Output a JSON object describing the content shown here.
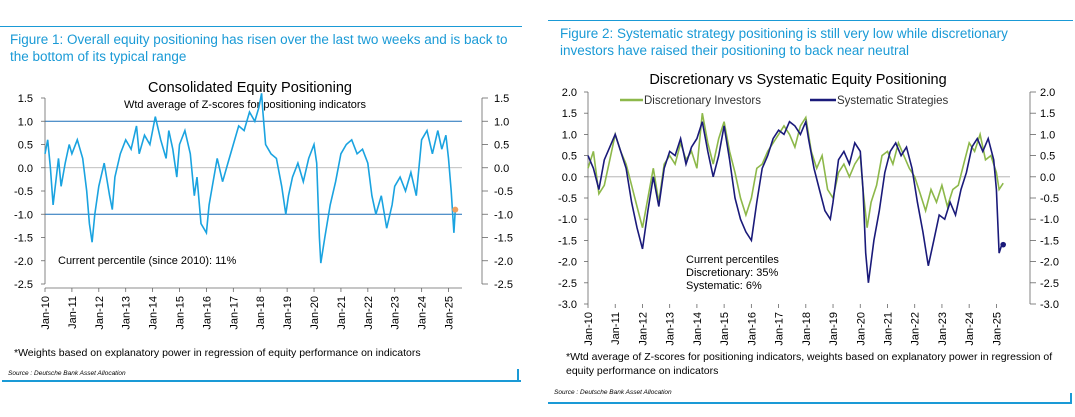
{
  "figure1": {
    "caption": "Figure 1: Overall equity positioning has risen over the last two weeks and is back to the bottom of its typical range",
    "footnote": "*Weights based on explanatory power in regression of equity performance on indicators",
    "source": "Source : Deutsche Bank Asset Allocation"
  },
  "figure2": {
    "caption": "Figure 2: Systematic strategy positioning is still very low while discretionary investors have raised their positioning to back near neutral",
    "footnote": "*Wtd average of Z-scores for positioning indicators, weights based on explanatory power in regression of equity performance on indicators",
    "source": "Source : Deutsche Bank Asset Allocation"
  },
  "chart_data": [
    {
      "type": "line",
      "title": "Consolidated Equity Positioning",
      "subtitle": "Wtd average of Z-scores for positioning indicators",
      "annotation": "Current percentile (since 2010): 11%",
      "ylim": [
        -2.5,
        1.5
      ],
      "yticks": [
        "1.5",
        "1.0",
        "0.5",
        "0.0",
        "-0.5",
        "-1.0",
        "-1.5",
        "-2.0",
        "-2.5"
      ],
      "ytick_values": [
        1.5,
        1.0,
        0.5,
        0.0,
        -0.5,
        -1.0,
        -1.5,
        -2.0,
        -2.5
      ],
      "reference_lines": [
        1.0,
        -1.0
      ],
      "xticks": [
        "Jan-10",
        "Jan-11",
        "Jan-12",
        "Jan-13",
        "Jan-14",
        "Jan-15",
        "Jan-16",
        "Jan-17",
        "Jan-18",
        "Jan-19",
        "Jan-20",
        "Jan-21",
        "Jan-22",
        "Jan-23",
        "Jan-24",
        "Jan-25"
      ],
      "x_start": 2010.0,
      "x_end": 2025.5,
      "line_color": "#1aa3e0",
      "marker_color": "#f0a060",
      "series": [
        {
          "x": [
            2010.0,
            2010.1,
            2010.2,
            2010.3,
            2010.4,
            2010.5,
            2010.6,
            2010.75,
            2010.9,
            2011.0,
            2011.2,
            2011.4,
            2011.55,
            2011.65,
            2011.75,
            2011.85,
            2012.0,
            2012.2,
            2012.4,
            2012.5,
            2012.6,
            2012.8,
            2013.0,
            2013.2,
            2013.4,
            2013.5,
            2013.7,
            2013.9,
            2014.0,
            2014.1,
            2014.3,
            2014.5,
            2014.6,
            2014.75,
            2014.9,
            2015.0,
            2015.2,
            2015.4,
            2015.55,
            2015.65,
            2015.8,
            2016.0,
            2016.1,
            2016.25,
            2016.4,
            2016.6,
            2016.8,
            2017.0,
            2017.2,
            2017.4,
            2017.6,
            2017.8,
            2017.95,
            2018.05,
            2018.1,
            2018.2,
            2018.4,
            2018.6,
            2018.8,
            2018.95,
            2019.05,
            2019.2,
            2019.4,
            2019.6,
            2019.8,
            2020.0,
            2020.1,
            2020.2,
            2020.25,
            2020.4,
            2020.6,
            2020.8,
            2021.0,
            2021.2,
            2021.4,
            2021.6,
            2021.8,
            2022.0,
            2022.15,
            2022.3,
            2022.5,
            2022.7,
            2022.9,
            2023.0,
            2023.2,
            2023.4,
            2023.6,
            2023.8,
            2024.0,
            2024.2,
            2024.4,
            2024.6,
            2024.75,
            2024.9,
            2025.0,
            2025.1,
            2025.2,
            2025.25
          ],
          "y": [
            0.3,
            0.6,
            0.0,
            -0.8,
            -0.3,
            0.2,
            -0.4,
            0.1,
            0.5,
            0.3,
            0.6,
            0.2,
            -0.5,
            -1.2,
            -1.6,
            -1.0,
            -0.4,
            0.1,
            -0.6,
            -0.9,
            -0.2,
            0.3,
            0.6,
            0.4,
            0.9,
            0.3,
            0.7,
            0.5,
            0.8,
            1.1,
            0.6,
            0.2,
            0.8,
            0.4,
            -0.2,
            0.5,
            0.8,
            0.3,
            -0.6,
            -0.2,
            -1.2,
            -1.4,
            -0.8,
            -0.3,
            0.2,
            -0.3,
            0.1,
            0.5,
            0.9,
            0.8,
            1.2,
            1.0,
            1.3,
            1.6,
            1.2,
            0.5,
            0.3,
            0.2,
            -0.4,
            -1.0,
            -0.6,
            -0.2,
            0.1,
            -0.3,
            0.2,
            0.5,
            0.1,
            -1.5,
            -2.05,
            -1.5,
            -0.8,
            -0.3,
            0.3,
            0.5,
            0.6,
            0.3,
            0.4,
            0.1,
            -0.6,
            -1.0,
            -0.6,
            -1.3,
            -0.8,
            -0.4,
            -0.2,
            -0.5,
            -0.1,
            -0.6,
            0.6,
            0.8,
            0.3,
            0.8,
            0.4,
            0.7,
            0.2,
            -0.5,
            -1.4,
            -0.9
          ]
        }
      ],
      "last_point": {
        "x": 2025.25,
        "y": -0.9
      }
    },
    {
      "type": "line",
      "title": "Discretionary  vs Systematic Equity Positioning",
      "annotation": [
        "Current percentiles",
        "Discretionary: 35%",
        "Systematic: 6%"
      ],
      "ylim": [
        -3.0,
        2.0
      ],
      "yticks_left": [
        "2.0",
        "1.5",
        "1.0",
        "0.5",
        "0.0",
        "-0.5",
        "-1.0",
        "-1.5",
        "-2.0",
        "-2.5",
        "-3.0"
      ],
      "yticks_right": [
        "2.0",
        "1.5",
        "1.0",
        "0.5",
        "0.0",
        "-0.5",
        "-1.0",
        "-1.5",
        "-2.0",
        "-2.5",
        "-3.0"
      ],
      "ytick_values": [
        2.0,
        1.5,
        1.0,
        0.5,
        0.0,
        -0.5,
        -1.0,
        -1.5,
        -2.0,
        -2.5,
        -3.0
      ],
      "xticks": [
        "Jan-10",
        "Jan-11",
        "Jan-12",
        "Jan-13",
        "Jan-14",
        "Jan-15",
        "Jan-16",
        "Jan-17",
        "Jan-18",
        "Jan-19",
        "Jan-20",
        "Jan-21",
        "Jan-22",
        "Jan-23",
        "Jan-24",
        "Jan-25"
      ],
      "x_start": 2010.0,
      "x_end": 2025.5,
      "series": [
        {
          "name": "Discretionary Investors",
          "color": "#8db84a",
          "x": [
            2010.0,
            2010.2,
            2010.4,
            2010.6,
            2010.8,
            2011.0,
            2011.2,
            2011.4,
            2011.6,
            2011.8,
            2012.0,
            2012.2,
            2012.4,
            2012.6,
            2012.8,
            2013.0,
            2013.2,
            2013.4,
            2013.6,
            2013.8,
            2014.0,
            2014.2,
            2014.4,
            2014.6,
            2014.8,
            2015.0,
            2015.2,
            2015.4,
            2015.6,
            2015.8,
            2016.0,
            2016.2,
            2016.4,
            2016.6,
            2016.8,
            2017.0,
            2017.2,
            2017.4,
            2017.6,
            2017.8,
            2018.0,
            2018.2,
            2018.4,
            2018.6,
            2018.8,
            2019.0,
            2019.2,
            2019.4,
            2019.6,
            2019.8,
            2020.0,
            2020.1,
            2020.25,
            2020.4,
            2020.6,
            2020.8,
            2021.0,
            2021.2,
            2021.4,
            2021.6,
            2021.8,
            2022.0,
            2022.2,
            2022.4,
            2022.6,
            2022.8,
            2023.0,
            2023.2,
            2023.4,
            2023.6,
            2023.8,
            2024.0,
            2024.2,
            2024.4,
            2024.6,
            2024.8,
            2025.0,
            2025.1,
            2025.25
          ],
          "y": [
            0.2,
            0.6,
            -0.4,
            -0.2,
            0.4,
            1.0,
            0.6,
            0.3,
            -0.2,
            -0.7,
            -1.2,
            -0.5,
            0.2,
            -0.6,
            0.3,
            0.5,
            0.3,
            0.8,
            0.4,
            0.6,
            0.2,
            1.5,
            0.8,
            0.3,
            0.9,
            1.3,
            0.6,
            0.1,
            -0.5,
            -0.9,
            -0.5,
            0.2,
            0.3,
            0.6,
            0.8,
            1.0,
            1.2,
            1.0,
            0.7,
            1.2,
            1.4,
            0.6,
            0.2,
            0.5,
            -0.3,
            -0.5,
            0.1,
            0.3,
            0.0,
            0.3,
            0.5,
            -0.3,
            -1.2,
            -0.6,
            -0.2,
            0.5,
            0.6,
            0.3,
            0.8,
            0.5,
            0.2,
            0.0,
            -0.4,
            -0.8,
            -0.3,
            -0.6,
            -0.2,
            -0.7,
            -0.3,
            -0.2,
            0.3,
            0.8,
            0.6,
            1.0,
            0.4,
            0.5,
            0.1,
            -0.3,
            -0.15
          ]
        },
        {
          "name": "Systematic Strategies",
          "color": "#1a1a7a",
          "x": [
            2010.0,
            2010.2,
            2010.4,
            2010.6,
            2010.8,
            2011.0,
            2011.2,
            2011.4,
            2011.6,
            2011.8,
            2012.0,
            2012.2,
            2012.4,
            2012.6,
            2012.8,
            2013.0,
            2013.2,
            2013.4,
            2013.6,
            2013.8,
            2014.0,
            2014.2,
            2014.4,
            2014.6,
            2014.8,
            2015.0,
            2015.2,
            2015.4,
            2015.6,
            2015.8,
            2016.0,
            2016.2,
            2016.4,
            2016.6,
            2016.8,
            2017.0,
            2017.2,
            2017.4,
            2017.6,
            2017.8,
            2018.0,
            2018.1,
            2018.3,
            2018.5,
            2018.7,
            2018.9,
            2019.0,
            2019.2,
            2019.4,
            2019.6,
            2019.8,
            2020.0,
            2020.1,
            2020.2,
            2020.3,
            2020.5,
            2020.7,
            2020.9,
            2021.1,
            2021.3,
            2021.5,
            2021.7,
            2021.9,
            2022.1,
            2022.3,
            2022.5,
            2022.7,
            2022.9,
            2023.1,
            2023.3,
            2023.5,
            2023.7,
            2023.9,
            2024.1,
            2024.3,
            2024.5,
            2024.7,
            2024.9,
            2025.0,
            2025.1,
            2025.2,
            2025.25
          ],
          "y": [
            0.5,
            0.2,
            -0.3,
            0.4,
            0.7,
            1.0,
            0.6,
            0.2,
            -0.6,
            -1.2,
            -1.7,
            -0.8,
            0.0,
            -0.7,
            0.2,
            0.6,
            0.5,
            0.9,
            0.3,
            0.7,
            0.9,
            1.3,
            0.6,
            0.0,
            0.5,
            1.2,
            0.4,
            -0.5,
            -1.0,
            -1.3,
            -1.5,
            -0.6,
            0.2,
            0.5,
            0.9,
            1.1,
            1.0,
            1.3,
            1.2,
            1.0,
            1.3,
            0.9,
            0.2,
            -0.3,
            -0.8,
            -1.0,
            -0.6,
            0.4,
            0.6,
            0.3,
            0.8,
            0.6,
            -0.3,
            -1.8,
            -2.5,
            -1.5,
            -0.8,
            0.1,
            0.6,
            0.8,
            0.5,
            0.7,
            0.2,
            -0.6,
            -1.3,
            -2.1,
            -1.5,
            -0.9,
            -1.0,
            -0.6,
            -0.9,
            -0.3,
            0.1,
            0.7,
            0.9,
            0.6,
            0.9,
            0.4,
            -0.3,
            -1.8,
            -1.6,
            -1.6
          ]
        }
      ],
      "last_point": {
        "x": 2025.25,
        "y": -1.6
      }
    }
  ]
}
